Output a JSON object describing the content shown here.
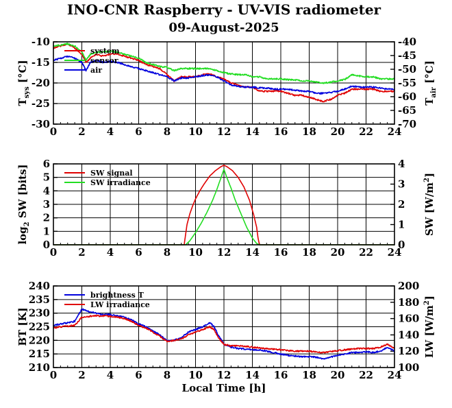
{
  "title": "INO-CNR Raspberry - UV-VIS radiometer",
  "subtitle": "09-August-2025",
  "colors": {
    "red": "#e00000",
    "green": "#22dd22",
    "blue": "#0000dd"
  },
  "chart_data": [
    {
      "type": "line",
      "name": "temperature",
      "ylabel": "T_sys [°C]",
      "ylabel_main": "T",
      "ylabel_sub": "sys",
      "ylabel_unit": " [°C]",
      "y2label_main": "T",
      "y2label_sub": "air",
      "y2label_unit": " [°C]",
      "xlim": [
        0,
        24
      ],
      "ylim": [
        -30,
        -10
      ],
      "y2lim": [
        -70,
        -40
      ],
      "xticks": [
        "0",
        "2",
        "4",
        "6",
        "8",
        "10",
        "12",
        "14",
        "16",
        "18",
        "20",
        "22",
        "24"
      ],
      "yticks": [
        "-10",
        "-15",
        "-20",
        "-25",
        "-30"
      ],
      "y2ticks": [
        "-40",
        "-45",
        "-50",
        "-55",
        "-60",
        "-65",
        "-70"
      ],
      "grid": true,
      "legend_position": "top-left",
      "series": [
        {
          "name": "system",
          "color": "#e00000",
          "axis": "left",
          "x": [
            0,
            0.5,
            1,
            1.5,
            2,
            2.3,
            2.6,
            3,
            3.5,
            4,
            4.5,
            5,
            5.5,
            6,
            6.5,
            7,
            7.5,
            8,
            8.5,
            9,
            9.5,
            10,
            10.5,
            11,
            11.5,
            12,
            12.5,
            13,
            13.5,
            14,
            14.5,
            15,
            15.5,
            16,
            16.5,
            17,
            17.5,
            18,
            18.5,
            19,
            19.5,
            20,
            20.5,
            21,
            21.5,
            22,
            22.5,
            23,
            23.5,
            24
          ],
          "values": [
            -11.5,
            -11,
            -10.5,
            -11.5,
            -13,
            -15,
            -14,
            -13,
            -13.5,
            -13,
            -13,
            -13.5,
            -14,
            -14.5,
            -15.5,
            -16,
            -16.5,
            -18,
            -19.5,
            -18.5,
            -18.5,
            -18.5,
            -18,
            -17.8,
            -18.5,
            -19,
            -20,
            -20.5,
            -21,
            -21,
            -22,
            -22,
            -22,
            -22,
            -22.5,
            -23,
            -23,
            -23.5,
            -24,
            -24.5,
            -24,
            -23,
            -22.5,
            -21.5,
            -21.5,
            -21.5,
            -21.5,
            -22,
            -22,
            -22
          ]
        },
        {
          "name": "sensor",
          "color": "#22dd22",
          "axis": "left",
          "x": [
            0,
            0.5,
            1,
            1.5,
            2,
            2.3,
            2.6,
            3,
            3.5,
            4,
            4.5,
            5,
            5.5,
            6,
            6.5,
            7,
            7.5,
            8,
            8.5,
            9,
            9.5,
            10,
            10.5,
            11,
            11.5,
            12,
            12.5,
            13,
            13.5,
            14,
            14.5,
            15,
            15.5,
            16,
            16.5,
            17,
            17.5,
            18,
            18.5,
            19,
            19.5,
            20,
            20.5,
            21,
            21.5,
            22,
            22.5,
            23,
            23.5,
            24
          ],
          "values": [
            -11,
            -10.8,
            -10.5,
            -11,
            -12.5,
            -14.5,
            -13,
            -12.5,
            -12.5,
            -12.3,
            -12.5,
            -13,
            -13.5,
            -14,
            -15,
            -15.5,
            -16,
            -16.2,
            -17,
            -16.5,
            -16.5,
            -16.5,
            -16.5,
            -16.5,
            -17,
            -17.5,
            -17.8,
            -18,
            -18,
            -18.5,
            -18.5,
            -19,
            -19,
            -19,
            -19.2,
            -19.3,
            -19.5,
            -19.5,
            -19.8,
            -20,
            -19.8,
            -19.5,
            -19.2,
            -18,
            -18.3,
            -18.5,
            -18.5,
            -19,
            -19,
            -19
          ]
        },
        {
          "name": "air",
          "color": "#0000dd",
          "axis": "left",
          "x": [
            0,
            0.5,
            1,
            1.5,
            2,
            2.3,
            2.6,
            3,
            3.5,
            4,
            4.5,
            5,
            5.5,
            6,
            6.5,
            7,
            7.5,
            8,
            8.5,
            9,
            9.5,
            10,
            10.5,
            11,
            11.5,
            12,
            12.5,
            13,
            13.5,
            14,
            14.5,
            15,
            15.5,
            16,
            16.5,
            17,
            17.5,
            18,
            18.5,
            19,
            19.5,
            20,
            20.5,
            21,
            21.5,
            22,
            22.5,
            23,
            23.5,
            24
          ],
          "values": [
            -14.5,
            -14,
            -13.5,
            -14,
            -15,
            -17,
            -15,
            -14.5,
            -15,
            -14.8,
            -15,
            -15.5,
            -16,
            -16.5,
            -17,
            -17.5,
            -18,
            -18.5,
            -19.5,
            -18.8,
            -18.8,
            -18.5,
            -18.2,
            -18,
            -18.5,
            -19.5,
            -20.5,
            -20.8,
            -21,
            -21,
            -21.2,
            -21.2,
            -21.5,
            -21.5,
            -21.5,
            -21.8,
            -22,
            -22,
            -22.5,
            -22.5,
            -22.3,
            -22,
            -21.5,
            -20.8,
            -21,
            -21,
            -21,
            -21.2,
            -21.5,
            -21.5
          ]
        }
      ]
    },
    {
      "type": "line",
      "name": "shortwave",
      "ylabel_main": "log",
      "ylabel_sub": "2",
      "ylabel_unit": " SW [bits]",
      "y2label_main": "SW [W/m",
      "y2label_sup": "2",
      "y2label_unit": "]",
      "xlim": [
        0,
        24
      ],
      "ylim": [
        0,
        6
      ],
      "y2lim": [
        0,
        4
      ],
      "xticks": [
        "0",
        "2",
        "4",
        "6",
        "8",
        "10",
        "12",
        "14",
        "16",
        "18",
        "20",
        "22",
        "24"
      ],
      "yticks": [
        "6",
        "5",
        "4",
        "3",
        "2",
        "1",
        "0"
      ],
      "y2ticks": [
        "4",
        "3",
        "2",
        "1",
        "0"
      ],
      "grid": true,
      "legend_position": "top-left",
      "series": [
        {
          "name": "SW signal",
          "color": "#e00000",
          "axis": "left",
          "x": [
            0,
            9.2,
            9.4,
            9.6,
            9.8,
            10,
            10.3,
            10.6,
            11,
            11.4,
            11.8,
            12,
            12.2,
            12.6,
            13,
            13.4,
            13.8,
            14.1,
            14.3,
            14.4,
            14.5,
            24
          ],
          "values": [
            0,
            0,
            1.5,
            2.3,
            2.9,
            3.4,
            4.0,
            4.5,
            5.1,
            5.5,
            5.8,
            5.9,
            5.8,
            5.5,
            5.0,
            4.3,
            3.3,
            2.2,
            1.3,
            0.5,
            0,
            0
          ]
        },
        {
          "name": "SW irradiance",
          "color": "#22dd22",
          "axis": "left",
          "x": [
            0,
            9.3,
            9.6,
            10,
            10.4,
            10.8,
            11.2,
            11.5,
            11.8,
            12,
            12.2,
            12.5,
            12.8,
            13.2,
            13.6,
            14,
            14.3,
            14.5,
            24
          ],
          "values": [
            0,
            0,
            0.3,
            0.9,
            1.6,
            2.4,
            3.3,
            4.1,
            5.0,
            5.6,
            5.0,
            4.2,
            3.3,
            2.3,
            1.3,
            0.5,
            0.1,
            0,
            0
          ]
        }
      ]
    },
    {
      "type": "line",
      "name": "longwave",
      "xlabel": "Local Time [h]",
      "ylabel_main": "BT [K]",
      "y2label_main": "LW [W/m",
      "y2label_sup": "2",
      "y2label_unit": "]",
      "xlim": [
        0,
        24
      ],
      "ylim": [
        210,
        240
      ],
      "y2lim": [
        100,
        200
      ],
      "xticks": [
        "0",
        "2",
        "4",
        "6",
        "8",
        "10",
        "12",
        "14",
        "16",
        "18",
        "20",
        "22",
        "24"
      ],
      "yticks": [
        "240",
        "235",
        "230",
        "225",
        "220",
        "215",
        "210"
      ],
      "y2ticks": [
        "200",
        "180",
        "160",
        "140",
        "120",
        "100"
      ],
      "grid": true,
      "legend_position": "top-left",
      "series": [
        {
          "name": "brightness T",
          "color": "#0000dd",
          "axis": "left",
          "x": [
            0,
            0.5,
            1,
            1.5,
            2,
            2.5,
            3,
            3.5,
            4,
            4.5,
            5,
            5.5,
            6,
            6.5,
            7,
            7.5,
            8,
            8.5,
            9,
            9.5,
            10,
            10.5,
            11,
            11.3,
            11.6,
            12,
            12.5,
            13,
            13.5,
            14,
            14.5,
            15,
            15.5,
            16,
            16.5,
            17,
            17.5,
            18,
            18.5,
            19,
            19.5,
            20,
            20.5,
            21,
            21.5,
            22,
            22.5,
            23,
            23.5,
            24
          ],
          "values": [
            225.5,
            226,
            226.5,
            227,
            231.5,
            230.5,
            230,
            229.5,
            229.5,
            229,
            228.5,
            227.5,
            226,
            225,
            223.5,
            222,
            219.8,
            220,
            221,
            223,
            224,
            225,
            226.5,
            225,
            222,
            218.5,
            217.5,
            217,
            216.8,
            216.5,
            216.5,
            216,
            215.5,
            215,
            214.5,
            214.2,
            214,
            214,
            213.8,
            213.2,
            213.8,
            214.5,
            215,
            215.5,
            215.5,
            215.8,
            215.5,
            216,
            217.5,
            216
          ]
        },
        {
          "name": "LW irradiance",
          "color": "#e00000",
          "axis": "left",
          "x": [
            0,
            0.5,
            1,
            1.5,
            2,
            2.5,
            3,
            3.5,
            4,
            4.5,
            5,
            5.5,
            6,
            6.5,
            7,
            7.5,
            8,
            8.5,
            9,
            9.5,
            10,
            10.5,
            11,
            11.3,
            11.6,
            12,
            12.5,
            13,
            13.5,
            14,
            14.5,
            15,
            15.5,
            16,
            16.5,
            17,
            17.5,
            18,
            18.5,
            19,
            19.5,
            20,
            20.5,
            21,
            21.5,
            22,
            22.5,
            23,
            23.5,
            24
          ],
          "values": [
            224.5,
            225,
            225.2,
            225.5,
            228.5,
            228.8,
            229,
            229,
            228.8,
            228.5,
            228,
            227,
            225.5,
            224.5,
            223,
            221.5,
            219.5,
            220,
            220.5,
            222,
            223,
            224,
            225,
            224,
            221,
            218.5,
            218,
            218,
            217.8,
            217.5,
            217.2,
            217,
            216.8,
            216.5,
            216.2,
            216,
            216,
            216,
            215.8,
            215.5,
            215.8,
            216.2,
            216.5,
            216.8,
            217,
            217,
            217,
            217.5,
            218.5,
            217
          ]
        }
      ]
    }
  ]
}
